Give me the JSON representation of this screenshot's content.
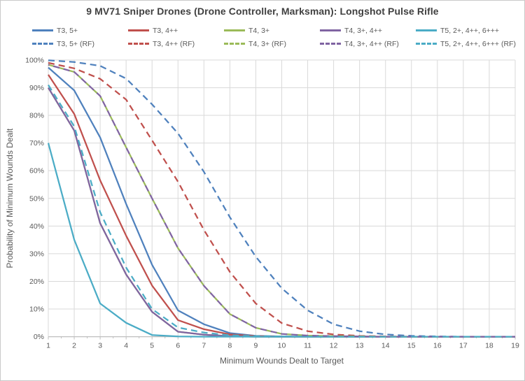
{
  "window": {
    "background": "#ffffff",
    "frame_border_color": "#c9c9c9",
    "gridline_color": "#d9d9d9",
    "axis_line_color": "#bfbfbf",
    "text_color": "#595959",
    "title_color": "#404040"
  },
  "chart_data": {
    "type": "line",
    "title": "9 MV71 Sniper Drones (Drone Controller, Marksman): Longshot Pulse Rifle",
    "xlabel": "Minimum Wounds Dealt to Target",
    "ylabel": "Probability of Minimum Wounds Dealt",
    "x": [
      1,
      2,
      3,
      4,
      5,
      6,
      7,
      8,
      9,
      10,
      11,
      12,
      13,
      14,
      15,
      16,
      17,
      18,
      19
    ],
    "xlim": [
      1,
      19
    ],
    "ylim": [
      0,
      100
    ],
    "y_tick_labels": [
      "0%",
      "10%",
      "20%",
      "30%",
      "40%",
      "50%",
      "60%",
      "70%",
      "80%",
      "90%",
      "100%"
    ],
    "grid": true,
    "legend_position": "top",
    "legend_rows": [
      [
        "T3, 5+",
        "T3, 4++",
        "T4, 3+",
        "T4, 3+, 4++",
        "T5, 2+, 4++, 6+++"
      ],
      [
        "T3, 5+ (RF)",
        "T3, 4++ (RF)",
        "T4, 3+ (RF)",
        "T4, 3+, 4++ (RF)",
        "T5, 2+, 4++, 6+++ (RF)"
      ]
    ],
    "series": [
      {
        "name": "T3, 5+",
        "color": "#4F81BD",
        "dash": "solid",
        "values": [
          97.3,
          89,
          72,
          48,
          26,
          9.5,
          4.5,
          1.3,
          0.3,
          0.1,
          0,
          0,
          0,
          0,
          0,
          0,
          0,
          0,
          0
        ]
      },
      {
        "name": "T3, 4++",
        "color": "#C0504D",
        "dash": "solid",
        "values": [
          94.7,
          80.5,
          56.5,
          36.5,
          18.5,
          6,
          2.7,
          0.8,
          0.2,
          0,
          0,
          0,
          0,
          0,
          0,
          0,
          0,
          0,
          0
        ]
      },
      {
        "name": "T4, 3+",
        "color": "#9BBB59",
        "dash": "solid",
        "values": [
          90,
          74.5,
          41,
          22.5,
          9,
          1.8,
          0.7,
          0.2,
          0,
          0,
          0,
          0,
          0,
          0,
          0,
          0,
          0,
          0,
          0
        ]
      },
      {
        "name": "T4, 3+, 4++",
        "color": "#8064A2",
        "dash": "solid",
        "values": [
          90,
          74.5,
          41,
          22.5,
          9,
          1.8,
          0.7,
          0.2,
          0,
          0,
          0,
          0,
          0,
          0,
          0,
          0,
          0,
          0,
          0
        ]
      },
      {
        "name": "T5, 2+, 4++, 6+++",
        "color": "#4BACC6",
        "dash": "solid",
        "values": [
          70,
          35,
          12,
          5,
          0.6,
          0.1,
          0,
          0,
          0,
          0,
          0,
          0,
          0,
          0,
          0,
          0,
          0,
          0,
          0
        ]
      },
      {
        "name": "T3, 5+ (RF)",
        "color": "#4F81BD",
        "dash": "dashed",
        "values": [
          99.9,
          99.3,
          97.9,
          93.3,
          84,
          73.5,
          59.6,
          43.2,
          28.9,
          17.5,
          9.5,
          4.5,
          2,
          0.8,
          0.3,
          0.1,
          0,
          0,
          0
        ]
      },
      {
        "name": "T3, 4++ (RF)",
        "color": "#C0504D",
        "dash": "dashed",
        "values": [
          99,
          97,
          93.2,
          85.7,
          71,
          56,
          38.6,
          23.4,
          12,
          4.9,
          2,
          0.8,
          0.3,
          0.1,
          0,
          0,
          0,
          0,
          0
        ]
      },
      {
        "name": "T4, 3+ (RF)",
        "color": "#9BBB59",
        "dash": "dashed",
        "values": [
          98.3,
          95.7,
          87,
          68.4,
          50,
          32,
          18.4,
          8.2,
          3.2,
          1,
          0.4,
          0.2,
          0.1,
          0,
          0,
          0,
          0,
          0,
          0
        ]
      },
      {
        "name": "T4, 3+, 4++ (RF)",
        "color": "#8064A2",
        "dash": "dashed",
        "values": [
          98.3,
          95.7,
          87,
          68.4,
          50,
          32,
          18.4,
          8.2,
          3.2,
          1,
          0.4,
          0.2,
          0.1,
          0,
          0,
          0,
          0,
          0,
          0
        ]
      },
      {
        "name": "T5, 2+, 4++, 6+++ (RF)",
        "color": "#4BACC6",
        "dash": "dashed",
        "values": [
          91,
          76,
          45,
          25,
          10,
          3.3,
          1.5,
          0.5,
          0.2,
          0.1,
          0,
          0,
          0,
          0,
          0,
          0,
          0,
          0,
          0
        ]
      }
    ]
  }
}
